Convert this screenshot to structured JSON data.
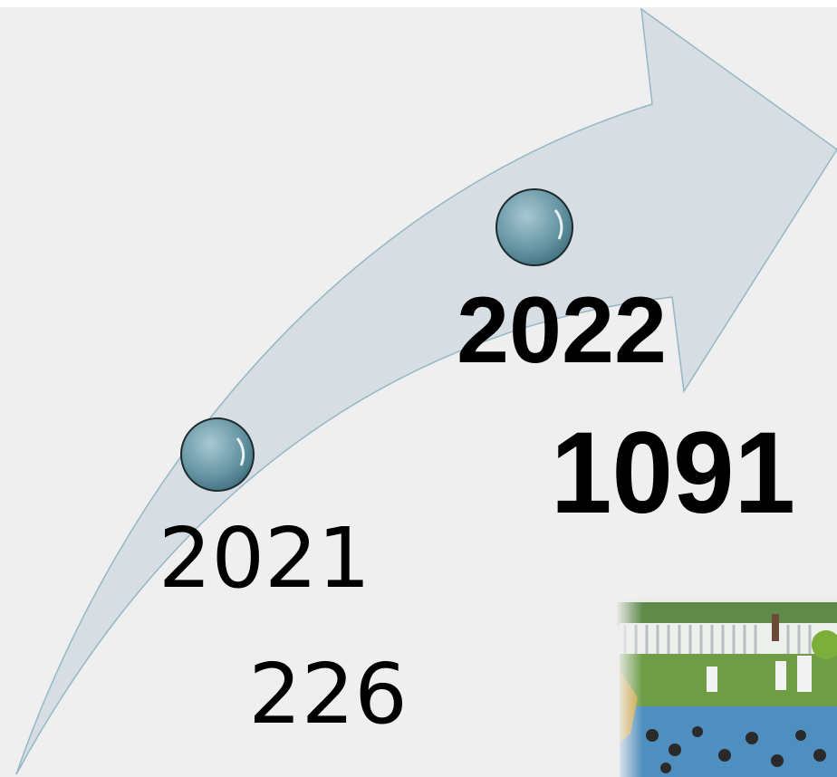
{
  "milestones": [
    {
      "year": "2021",
      "count": 226
    },
    {
      "year": "2022",
      "count": 1091
    }
  ]
}
